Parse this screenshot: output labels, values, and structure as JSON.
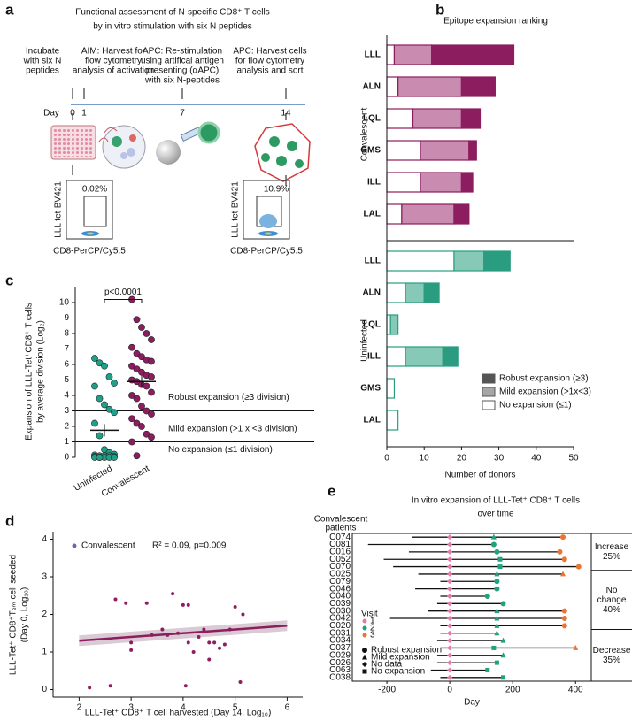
{
  "panel_labels": [
    "a",
    "b",
    "c",
    "d",
    "e"
  ],
  "diagram": {
    "title": [
      "Functional assessment of N-specific CD8⁺ T cells",
      "by in vitro stimulation with six N peptides"
    ],
    "steps": [
      [
        "Incubate",
        "with six N",
        "peptides"
      ],
      [
        "AIM: Harvest for",
        "flow cytometry",
        "analysis of activation"
      ],
      [
        "APC: Re-stimulation",
        "using artifical antigen",
        "presenting (αAPC)",
        "with six N-peptides"
      ],
      [
        "APC: Harvest cells",
        "for flow cytometry",
        "analysis and sort"
      ]
    ],
    "day_label": "Day",
    "days": [
      0,
      1,
      7,
      14
    ],
    "flow": {
      "gates": [
        "0.02%",
        "10.9%"
      ],
      "ylabel": "LLL tet-BV421",
      "xlabel": "CD8-PerCP/Cy5.5"
    }
  },
  "chart_data": [
    {
      "type": "stacked-hbar",
      "title": "Epitope expansion ranking",
      "xlabel": "Number of donors",
      "xlim": [
        0,
        50
      ],
      "xticks": [
        0,
        10,
        20,
        30,
        40,
        50
      ],
      "legend": "lower right",
      "series": [
        {
          "name": "Robust expansion (≥3)",
          "color": "#555555"
        },
        {
          "name": "Mild expansion (>1x<3)",
          "color": "#a6a6a6"
        },
        {
          "name": "No expansion (≤1)",
          "color": "#ffffff"
        }
      ],
      "groups": [
        {
          "name": "Convalescent",
          "colors": [
            "#8c1d5e",
            "#c98bb0",
            "#ffffff"
          ],
          "categories": [
            "LLL",
            "ALN",
            "LQL",
            "GMS",
            "ILL",
            "LAL"
          ],
          "values": [
            [
              22,
              9,
              5,
              2,
              3,
              4
            ],
            [
              10,
              17,
              13,
              13,
              11,
              14
            ],
            [
              2,
              3,
              7,
              9,
              9,
              4
            ]
          ]
        },
        {
          "name": "Uninfected",
          "colors": [
            "#2a9d80",
            "#86c9b6",
            "#ffffff"
          ],
          "categories": [
            "LLL",
            "ALN",
            "LQL",
            "ILL",
            "GMS",
            "LAL"
          ],
          "values": [
            [
              7,
              4,
              0,
              4,
              0,
              0
            ],
            [
              8,
              5,
              2,
              10,
              0,
              0
            ],
            [
              18,
              5,
              1,
              5,
              2,
              3
            ]
          ]
        }
      ]
    },
    {
      "type": "dot",
      "ylabel": [
        "Expansion of LLL-Tet⁺CD8⁺ T cells",
        "by average division (Log₂)"
      ],
      "categories": [
        "Uninfected",
        "Convalescent"
      ],
      "colors": [
        "#1fa088",
        "#8c1d5e"
      ],
      "values": [
        [
          6.4,
          6.1,
          5.9,
          5.2,
          4.8,
          4.6,
          3.8,
          3.4,
          3.1,
          2.9,
          2.2,
          1.4,
          0.5,
          0.3,
          0.2,
          0.15,
          0.1,
          0.1,
          0.1,
          0.05,
          0.05,
          0,
          0,
          0,
          0,
          0,
          0
        ],
        [
          10.2,
          8.9,
          8.4,
          8.0,
          7.6,
          7.1,
          6.7,
          6.5,
          6.3,
          6.2,
          5.9,
          5.7,
          5.5,
          5.3,
          5.2,
          5.0,
          4.9,
          4.7,
          4.6,
          4.2,
          4.0,
          3.8,
          3.3,
          3.0,
          2.8,
          2.5,
          2.2,
          2.0,
          1.5,
          1.3,
          1.0,
          0.1
        ]
      ],
      "means": [
        1.75,
        4.9
      ],
      "errors": [
        0.4,
        0.4
      ],
      "ylim": [
        0,
        11
      ],
      "yticks": [
        0,
        1,
        2,
        3,
        4,
        5,
        6,
        7,
        8,
        9,
        10
      ],
      "thresholds": [
        3,
        1
      ],
      "threshold_labels": [
        "Robust expansion (≥3 division)",
        "Mild expansion (>1 x <3 division)",
        "No expansion (≤1 division)"
      ],
      "annotation": "p<0.0001"
    },
    {
      "type": "scatter",
      "xlabel": "LLL-Tet⁺ CD8⁺ T cell harvested (Day 14, Log₁₀)",
      "ylabel": [
        "LLL-Tet⁺ CD8⁺Tₑₘ cell seeded",
        "(Day 0, Log₁₀)"
      ],
      "legend_label": "Convalescent",
      "annotation": "R² = 0.09, p=0.009",
      "color": "#8c1d5e",
      "x": [
        2.2,
        2.6,
        2.7,
        2.9,
        3.0,
        3.0,
        3.3,
        3.4,
        3.6,
        3.7,
        3.8,
        3.9,
        4.0,
        4.05,
        4.1,
        4.1,
        4.2,
        4.3,
        4.4,
        4.5,
        4.6,
        4.7,
        4.8,
        4.9,
        5.0,
        5.1,
        5.15,
        4.5
      ],
      "values": [
        0.05,
        0.1,
        2.4,
        2.3,
        1.25,
        1.05,
        2.3,
        1.45,
        1.6,
        1.45,
        2.55,
        1.5,
        2.25,
        0.1,
        2.25,
        1.25,
        1.0,
        1.4,
        1.6,
        1.25,
        1.25,
        1.1,
        1.2,
        1.6,
        2.2,
        0.2,
        2.0,
        0.8
      ],
      "fit": {
        "x": [
          2,
          6
        ],
        "values": [
          1.3,
          1.7
        ]
      },
      "xlim": [
        1.5,
        6.3
      ],
      "ylim": [
        -0.2,
        4.2
      ],
      "xticks": [
        2,
        3,
        4,
        5,
        6
      ],
      "yticks": [
        0,
        1,
        2,
        3,
        4
      ]
    },
    {
      "type": "timeline",
      "title": [
        "In vitro expansion of LLL-Tet⁺ CD8⁺ T cells",
        "over time"
      ],
      "ylabel": [
        "Convalescent",
        "patients"
      ],
      "xlabel": "Day",
      "xlim": [
        -310,
        450
      ],
      "xticks": [
        -200,
        0,
        200,
        400
      ],
      "visit_title": "Visit",
      "visits": [
        {
          "value": 1,
          "color": "#e57aa9"
        },
        {
          "value": 2,
          "color": "#1fa37e"
        },
        {
          "value": 3,
          "color": "#ea7434"
        }
      ],
      "outcomes": [
        "Robust expansion",
        "Mild expansion",
        "No data",
        "No expansion"
      ],
      "groups": [
        {
          "label": [
            "Increase",
            "25%"
          ],
          "patients": [
            {
              "id": "C074",
              "start": -120,
              "visits": [
                [
                  0,
                  2
                ],
                [
                  140,
                  1
                ],
                [
                  360,
                  0
                ]
              ]
            },
            {
              "id": "C081",
              "start": -260,
              "visits": [
                [
                  0,
                  2
                ],
                [
                  140,
                  0
                ]
              ]
            },
            {
              "id": "C016",
              "start": -130,
              "visits": [
                [
                  0,
                  2
                ],
                [
                  150,
                  0
                ],
                [
                  350,
                  0
                ]
              ]
            },
            {
              "id": "C052",
              "start": -210,
              "visits": [
                [
                  0,
                  2
                ],
                [
                  160,
                  3
                ],
                [
                  365,
                  0
                ]
              ]
            },
            {
              "id": "C070",
              "start": -180,
              "visits": [
                [
                  0,
                  2
                ],
                [
                  160,
                  3
                ],
                [
                  410,
                  0
                ]
              ]
            }
          ]
        },
        {
          "label": [
            "No",
            "change",
            "40%"
          ],
          "patients": [
            {
              "id": "C025",
              "start": -100,
              "visits": [
                [
                  0,
                  2
                ],
                [
                  150,
                  1
                ],
                [
                  360,
                  1
                ]
              ]
            },
            {
              "id": "C079",
              "start": -30,
              "visits": [
                [
                  0,
                  2
                ],
                [
                  150,
                  0
                ]
              ]
            },
            {
              "id": "C046",
              "start": -110,
              "visits": [
                [
                  0,
                  2
                ],
                [
                  150,
                  0
                ]
              ]
            },
            {
              "id": "C040",
              "start": -30,
              "visits": [
                [
                  0,
                  2
                ],
                [
                  120,
                  0
                ]
              ]
            },
            {
              "id": "C039",
              "start": -40,
              "visits": [
                [
                  0,
                  2
                ],
                [
                  170,
                  0
                ]
              ]
            },
            {
              "id": "C030",
              "start": -70,
              "visits": [
                [
                  0,
                  2
                ],
                [
                  150,
                  1
                ],
                [
                  365,
                  0
                ]
              ]
            },
            {
              "id": "C042",
              "start": -190,
              "visits": [
                [
                  0,
                  2
                ],
                [
                  150,
                  1
                ],
                [
                  365,
                  0
                ]
              ]
            },
            {
              "id": "C020",
              "start": -30,
              "visits": [
                [
                  0,
                  2
                ],
                [
                  150,
                  1
                ],
                [
                  365,
                  0
                ]
              ]
            }
          ]
        },
        {
          "label": [
            "Decrease",
            "35%"
          ],
          "patients": [
            {
              "id": "C031",
              "start": -30,
              "visits": [
                [
                  0,
                  2
                ],
                [
                  150,
                  1
                ]
              ]
            },
            {
              "id": "C034",
              "start": -40,
              "visits": [
                [
                  0,
                  2
                ],
                [
                  170,
                  1
                ]
              ]
            },
            {
              "id": "C037",
              "start": -30,
              "visits": [
                [
                  0,
                  2
                ],
                [
                  140,
                  3
                ],
                [
                  400,
                  1
                ]
              ]
            },
            {
              "id": "C029",
              "start": -40,
              "visits": [
                [
                  0,
                  2
                ],
                [
                  170,
                  1
                ]
              ]
            },
            {
              "id": "C026",
              "start": -40,
              "visits": [
                [
                  0,
                  2
                ],
                [
                  150,
                  3
                ]
              ]
            },
            {
              "id": "C063",
              "start": -60,
              "visits": [
                [
                  0,
                  2
                ],
                [
                  120,
                  3
                ]
              ]
            },
            {
              "id": "C038",
              "start": -30,
              "visits": [
                [
                  0,
                  2
                ],
                [
                  170,
                  3
                ]
              ]
            }
          ]
        }
      ]
    }
  ]
}
